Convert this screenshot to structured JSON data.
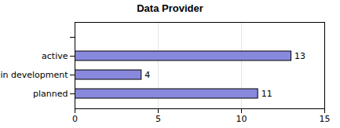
{
  "chart_data": {
    "type": "bar",
    "title": "Data Provider",
    "orientation": "horizontal",
    "categories": [
      null,
      "active",
      "in development",
      "planned"
    ],
    "values": [
      0,
      13,
      4,
      11
    ],
    "value_labels": [
      null,
      "13",
      "4",
      "11"
    ],
    "data_labels": true,
    "color": "#8888dd",
    "xlim": [
      0,
      15
    ],
    "xticks": [
      0,
      5,
      10,
      15
    ],
    "grid": true
  }
}
